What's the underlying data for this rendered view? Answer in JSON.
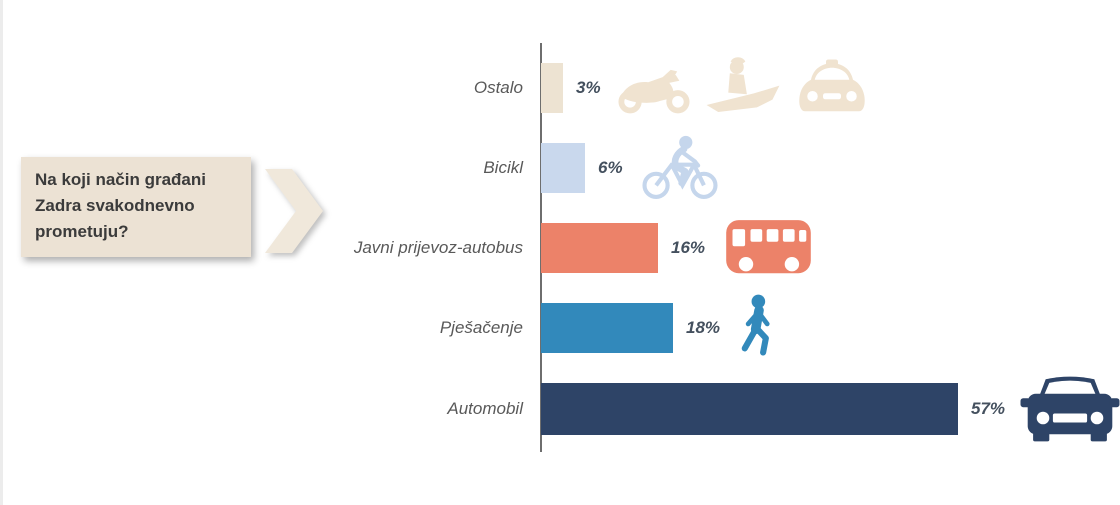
{
  "callout": {
    "lines": [
      "Na koji način građani",
      "Zadra svakodnevno",
      "prometuju?"
    ],
    "bg": "#ece2d4",
    "text_color": "#3b3b3b"
  },
  "chevron": {
    "color": "#f0e8db"
  },
  "chart_data": {
    "type": "bar",
    "orientation": "horizontal",
    "title": "Na koji način građani Zadra svakodnevno prometuju?",
    "categories": [
      "Ostalo",
      "Bicikl",
      "Javni prijevoz-autobus",
      "Pješačenje",
      "Automobil"
    ],
    "values": [
      3,
      6,
      16,
      18,
      57
    ],
    "value_labels": [
      "3%",
      "6%",
      "16%",
      "18%",
      "57%"
    ],
    "xlabel": "",
    "ylabel": "",
    "xlim": [
      0,
      60
    ],
    "grid": false,
    "legend": false,
    "axis_color": "#6e6e6e",
    "category_label_color": "#595959",
    "value_label_color": "#44505e",
    "bars": [
      {
        "category": "Ostalo",
        "value": 3,
        "label": "3%",
        "color": "#ede3d2",
        "icons": [
          "motorcycle-icon",
          "speedboat-icon",
          "taxi-icon"
        ],
        "icon_color": "#f0e3d0"
      },
      {
        "category": "Bicikl",
        "value": 6,
        "label": "6%",
        "color": "#c9d8ed",
        "icons": [
          "cyclist-icon"
        ],
        "icon_color": "#c5d6ec"
      },
      {
        "category": "Javni prijevoz-autobus",
        "value": 16,
        "label": "16%",
        "color": "#ec8269",
        "icons": [
          "bus-icon"
        ],
        "icon_color": "#ec8269"
      },
      {
        "category": "Pješačenje",
        "value": 18,
        "label": "18%",
        "color": "#3289bb",
        "icons": [
          "pedestrian-icon"
        ],
        "icon_color": "#3289bb"
      },
      {
        "category": "Automobil",
        "value": 57,
        "label": "57%",
        "color": "#2e4467",
        "icons": [
          "car-icon"
        ],
        "icon_color": "#2e4467"
      }
    ]
  }
}
